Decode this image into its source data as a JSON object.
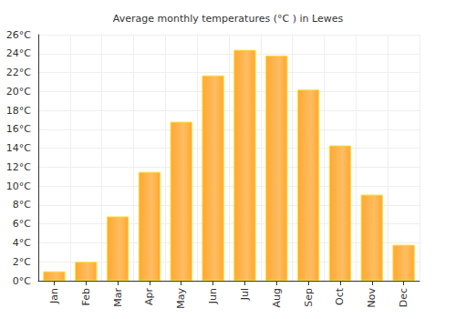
{
  "chart_data": {
    "type": "bar",
    "title": "Average monthly temperatures (°C ) in Lewes",
    "categories": [
      "Jan",
      "Feb",
      "Mar",
      "Apr",
      "May",
      "Jun",
      "Jul",
      "Aug",
      "Sep",
      "Oct",
      "Nov",
      "Dec"
    ],
    "values": [
      1.0,
      2.0,
      6.8,
      11.5,
      16.8,
      21.7,
      24.4,
      23.8,
      20.2,
      14.3,
      9.1,
      3.8
    ],
    "color": "#ffa830",
    "ylim": [
      0,
      26
    ],
    "yticks": [
      {
        "value": 0,
        "label": "0°C"
      },
      {
        "value": 2,
        "label": "2°C"
      },
      {
        "value": 4,
        "label": "4°C"
      },
      {
        "value": 6,
        "label": "6°C"
      },
      {
        "value": 8,
        "label": "8°C"
      },
      {
        "value": 10,
        "label": "10°C"
      },
      {
        "value": 12,
        "label": "12°C"
      },
      {
        "value": 14,
        "label": "14°C"
      },
      {
        "value": 16,
        "label": "16°C"
      },
      {
        "value": 18,
        "label": "18°C"
      },
      {
        "value": 20,
        "label": "20°C"
      },
      {
        "value": 22,
        "label": "22°C"
      },
      {
        "value": 24,
        "label": "24°C"
      },
      {
        "value": 26,
        "label": "26°C"
      }
    ],
    "grid": true
  }
}
